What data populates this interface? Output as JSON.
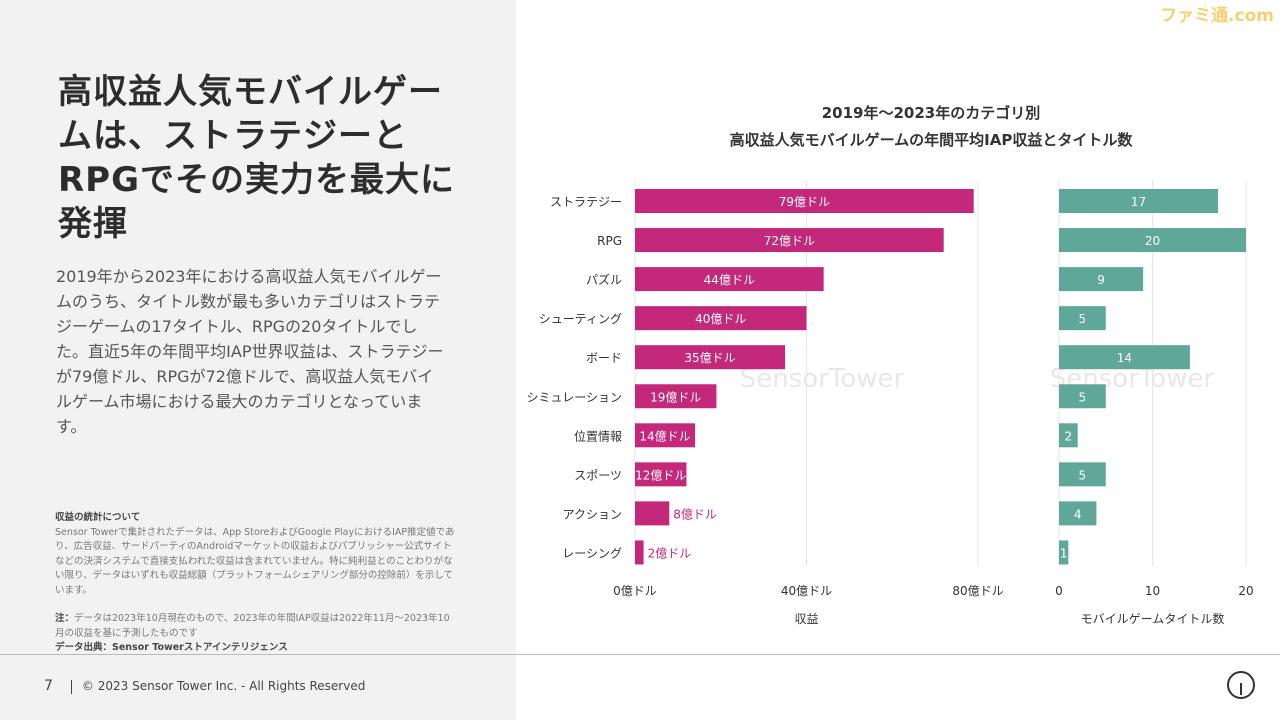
{
  "page_title": "高収益人気モバイルゲームは、ストラテジーとRPGでその実力を最大に発揮",
  "body": "2019年から2023年における高収益人気モバイルゲームのうち、タイトル数が最も多いカテゴリはストラテジーゲームの17タイトル、RPGの20タイトルでした。直近5年の年間平均IAP世界収益は、ストラテジーが79億ドル、RPGが72億ドルで、高収益人気モバイルゲーム市場における最大のカテゴリとなっています。",
  "notes": {
    "heading": "収益の統計について",
    "text": "Sensor Towerで集計されたデータは、App StoreおよびGoogle PlayにおけるIAP推定値であり、広告収益、サードパーティのAndroidマーケットの収益およびパブリッシャー公式サイトなどの決済システムで直接支払われた収益は含まれていません。特に純利益とのことわりがない限り、データはいずれも収益総額（プラットフォームシェアリング部分の控除前）を示しています。",
    "note_label": "注：",
    "note_text": "データは2023年10月現在のもので、2023年の年間IAP収益は2022年11月～2023年10月の収益を基に予測したものです",
    "source": "データ出典：Sensor Towerストアインテリジェンス"
  },
  "footer": {
    "page": "7",
    "copyright": "© 2023 Sensor Tower Inc. - All Rights Reserved"
  },
  "watermark": "ファミ通.com",
  "chart_data": [
    {
      "type": "bar",
      "orientation": "horizontal",
      "title": "2019年～2023年のカテゴリ別",
      "subtitle": "高収益人気モバイルゲームの年間平均IAP収益とタイトル数",
      "categories": [
        "ストラテジー",
        "RPG",
        "パズル",
        "シューティング",
        "ボード",
        "シミュレーション",
        "位置情報",
        "スポーツ",
        "アクション",
        "レーシング"
      ],
      "values": [
        79,
        72,
        44,
        40,
        35,
        19,
        14,
        12,
        8,
        2
      ],
      "data_labels": [
        "79億ドル",
        "72億ドル",
        "44億ドル",
        "40億ドル",
        "35億ドル",
        "19億ドル",
        "14億ドル",
        "12億ドル",
        "8億ドル",
        "2億ドル"
      ],
      "xlabel": "収益",
      "xlim": [
        0,
        80
      ],
      "ticks": [
        0,
        40,
        80
      ],
      "tick_labels": [
        "0億ドル",
        "40億ドル",
        "80億ドル"
      ],
      "grid": true,
      "color": "#c4287a"
    },
    {
      "type": "bar",
      "orientation": "horizontal",
      "values": [
        17,
        20,
        9,
        5,
        14,
        5,
        2,
        5,
        4,
        1
      ],
      "data_labels": [
        "17",
        "20",
        "9",
        "5",
        "14",
        "5",
        "2",
        "5",
        "4",
        "1"
      ],
      "xlabel": "モバイルゲームタイトル数",
      "xlim": [
        0,
        20
      ],
      "ticks": [
        0,
        10,
        20
      ],
      "tick_labels": [
        "0",
        "10",
        "20"
      ],
      "grid": true,
      "color": "#5fa899"
    }
  ],
  "chart_watermark": "SensorTower"
}
